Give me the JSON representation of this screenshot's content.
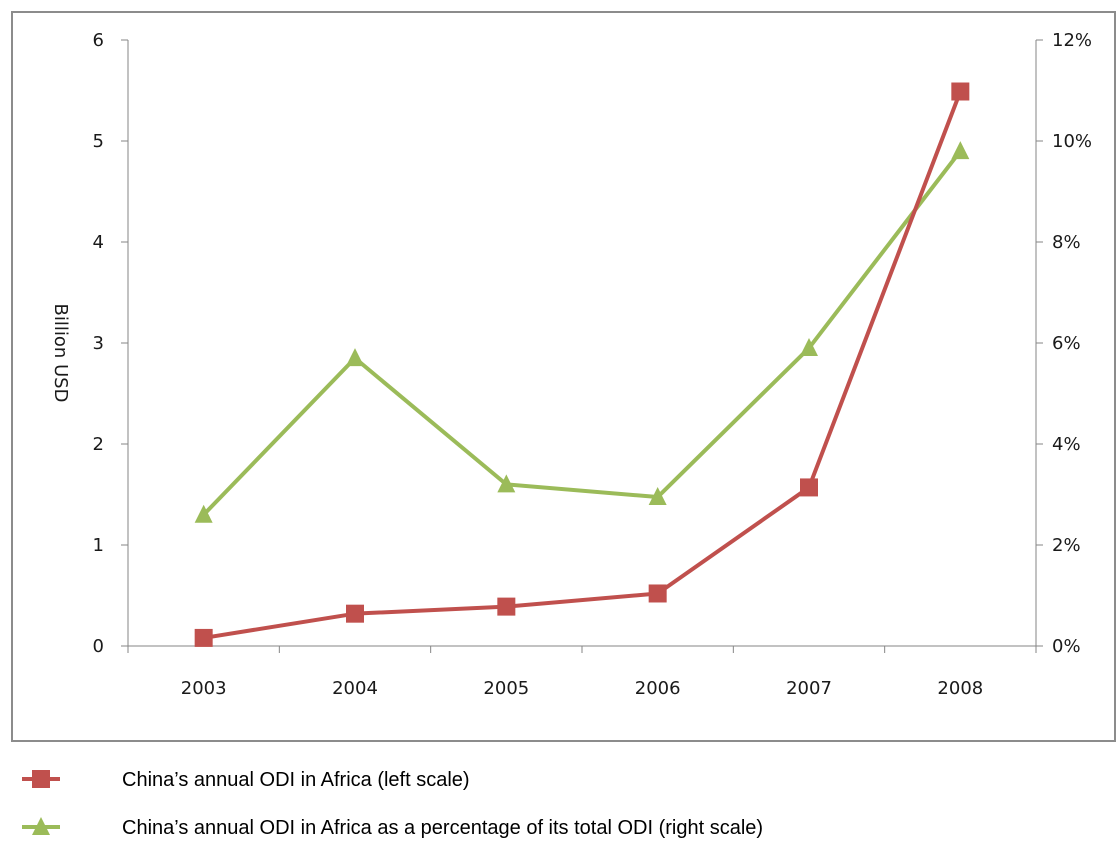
{
  "chart_data": {
    "type": "line",
    "categories": [
      "2003",
      "2004",
      "2005",
      "2006",
      "2007",
      "2008"
    ],
    "left_axis": {
      "label": "Billion USD",
      "range": [
        0,
        6
      ],
      "ticks": [
        "0",
        "1",
        "2",
        "3",
        "4",
        "5",
        "6"
      ]
    },
    "right_axis": {
      "label": "",
      "range": [
        0,
        12
      ],
      "ticks": [
        "0%",
        "2%",
        "4%",
        "6%",
        "8%",
        "10%",
        "12%"
      ]
    },
    "series": [
      {
        "name": "China’s annual ODI in Africa (left scale)",
        "axis": "left",
        "color": "#c0504d",
        "marker": "square",
        "values": [
          0.08,
          0.32,
          0.39,
          0.52,
          1.57,
          5.49
        ]
      },
      {
        "name": "China’s annual ODI in Africa as a percentage of its total ODI (right scale)",
        "axis": "right",
        "color": "#9bbb59",
        "marker": "triangle",
        "values": [
          2.6,
          5.7,
          3.2,
          2.95,
          5.9,
          9.8
        ]
      }
    ],
    "grid": false,
    "legend_position": "bottom"
  }
}
